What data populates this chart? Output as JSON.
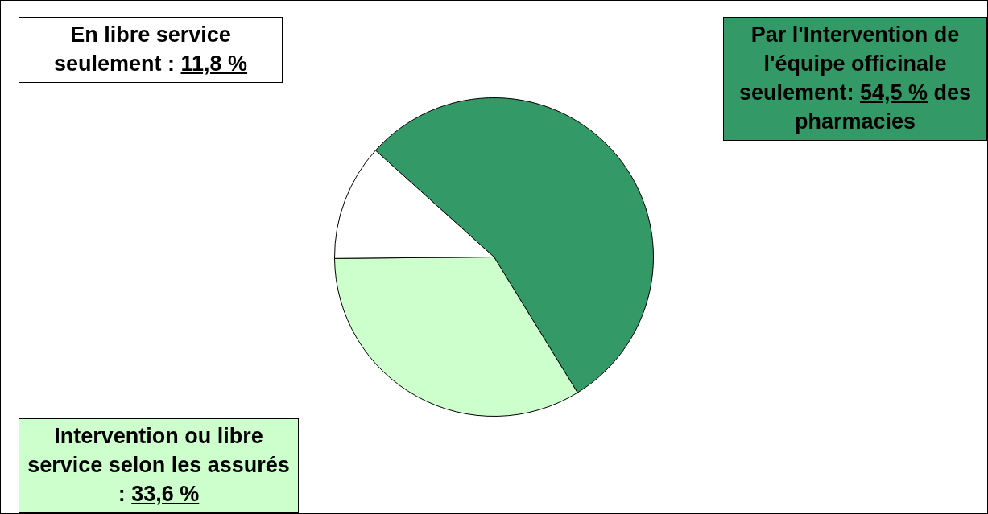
{
  "chart_data": {
    "type": "pie",
    "categories": [
      null,
      null,
      null
    ],
    "values": [
      54.5,
      33.6,
      11.8
    ],
    "colors": [
      "#339966",
      "#ccffcc",
      "#ffffff"
    ],
    "annotations": [
      "Par l'Intervention de l'équipe officinale seulement: 54,5 % des pharmacies",
      "Intervention ou libre service selon les assurés : 33,6 %",
      "En libre service seulement : 11,8 %"
    ],
    "legend": false
  }
}
